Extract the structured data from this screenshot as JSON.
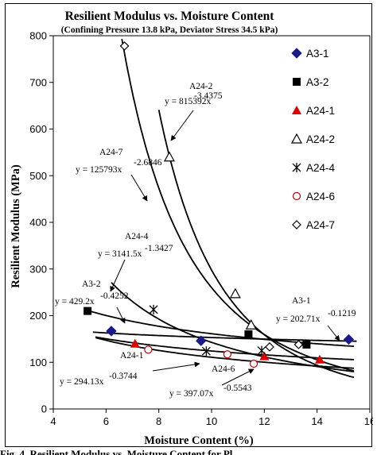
{
  "caption_cut": "Fig. 4. Resilient Modulus vs. Moisture Content for Pl",
  "chart_data": {
    "type": "scatter",
    "title": "Resilient Modulus vs. Moisture Content",
    "subtitle": "(Confining Pressure 13.8 kPa, Deviator Stress 34.5 kPa)",
    "xlabel": "Moisture Content (%)",
    "ylabel": "Resilient Modulus (MPa)",
    "xlim": [
      4,
      16
    ],
    "ylim": [
      0,
      800
    ],
    "xticks": [
      "4",
      "6",
      "8",
      "10",
      "12",
      "14",
      "16"
    ],
    "yticks": [
      "0",
      "100",
      "200",
      "300",
      "400",
      "500",
      "600",
      "700",
      "800"
    ],
    "legend_position": "right",
    "series": [
      {
        "name": "A3-1",
        "marker": "diamond-filled",
        "color": "#1a1a8c",
        "points": [
          [
            6.2,
            167
          ],
          [
            9.6,
            146
          ],
          [
            15.2,
            149
          ]
        ],
        "trend": {
          "a": 202.71,
          "b": -0.1219,
          "range": [
            5.5,
            15.5
          ]
        }
      },
      {
        "name": "A3-2",
        "marker": "square-filled",
        "color": "#000000",
        "points": [
          [
            5.3,
            210
          ],
          [
            11.4,
            160
          ],
          [
            13.6,
            138
          ]
        ],
        "trend": {
          "a": 429.2,
          "b": -0.4252,
          "range": [
            5.3,
            15.4
          ]
        }
      },
      {
        "name": "A24-1",
        "marker": "triangle-filled",
        "color": "#e00000",
        "points": [
          [
            7.1,
            140
          ],
          [
            12.0,
            113
          ],
          [
            14.1,
            106
          ]
        ],
        "trend": {
          "a": 294.13,
          "b": -0.3744,
          "range": [
            5.6,
            15.4
          ]
        }
      },
      {
        "name": "A24-2",
        "marker": "triangle-open",
        "color": "#000000",
        "points": [
          [
            8.4,
            540
          ],
          [
            10.9,
            247
          ],
          [
            11.5,
            180
          ]
        ],
        "trend": {
          "a": 815392,
          "b": -3.4375,
          "range": [
            8.0,
            15.4
          ]
        }
      },
      {
        "name": "A24-4",
        "marker": "star",
        "color": "#000000",
        "points": [
          [
            7.8,
            213
          ],
          [
            9.8,
            124
          ],
          [
            11.9,
            125
          ]
        ],
        "trend": {
          "a": 3141.5,
          "b": -1.3427,
          "range": [
            6.2,
            15.4
          ]
        }
      },
      {
        "name": "A24-6",
        "marker": "circle-open",
        "color": "#c00000",
        "points": [
          [
            7.6,
            127
          ],
          [
            10.6,
            117
          ],
          [
            11.6,
            97
          ]
        ],
        "trend": {
          "a": 397.07,
          "b": -0.5543,
          "range": [
            5.6,
            15.4
          ]
        }
      },
      {
        "name": "A24-7",
        "marker": "diamond-open",
        "color": "#000000",
        "points": [
          [
            6.7,
            778
          ],
          [
            12.2,
            133
          ],
          [
            13.3,
            138
          ]
        ],
        "trend": {
          "a": 125793,
          "b": -2.6846,
          "range": [
            6.6,
            15.4
          ]
        }
      }
    ],
    "annotations": [
      {
        "id": "a24-2",
        "name": "A24-2",
        "eq": "y = 815392x",
        "exp": "-3.4375"
      },
      {
        "id": "a24-7",
        "name": "A24-7",
        "eq": "y = 125793x",
        "exp": "-2.6846"
      },
      {
        "id": "a24-4",
        "name": "A24-4",
        "eq": "y = 3141.5x",
        "exp": "-1.3427"
      },
      {
        "id": "a3-2",
        "name": "A3-2",
        "eq": "y = 429.2x",
        "exp": "-0.4252"
      },
      {
        "id": "a3-1",
        "name": "A3-1",
        "eq": "y = 202.71x",
        "exp": "-0.1219"
      },
      {
        "id": "a24-1",
        "name": "A24-1",
        "eq": "y = 294.13x",
        "exp": "-0.3744"
      },
      {
        "id": "a24-6",
        "name": "A24-6",
        "eq": "y = 397.07x",
        "exp": "-0.5543"
      }
    ]
  }
}
